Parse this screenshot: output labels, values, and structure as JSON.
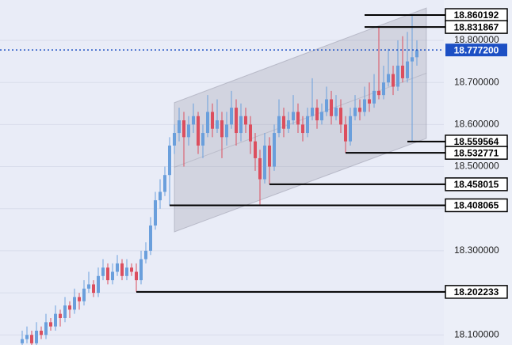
{
  "chart_data": {
    "type": "candlestick",
    "ylim": [
      18.076,
      18.896
    ],
    "yticks": [
      {
        "value": 18.1,
        "label": "18.100000"
      },
      {
        "value": 18.2,
        "label": "18.200000"
      },
      {
        "value": 18.3,
        "label": "18.300000"
      },
      {
        "value": 18.4,
        "label": "18.400000"
      },
      {
        "value": 18.5,
        "label": "18.500000"
      },
      {
        "value": 18.6,
        "label": "18.600000"
      },
      {
        "value": 18.7,
        "label": "18.700000"
      },
      {
        "value": 18.8,
        "label": "18.800000"
      }
    ],
    "grid": true,
    "up_color": "#6a9fdc",
    "down_color": "#dc4e5e",
    "candles": [
      [
        18.08,
        18.11,
        18.07,
        18.09
      ],
      [
        18.09,
        18.12,
        18.08,
        18.1
      ],
      [
        18.1,
        18.11,
        18.07,
        18.08
      ],
      [
        18.08,
        18.13,
        18.07,
        18.11
      ],
      [
        18.11,
        18.12,
        18.09,
        18.1
      ],
      [
        18.1,
        18.15,
        18.09,
        18.13
      ],
      [
        18.13,
        18.14,
        18.11,
        18.12
      ],
      [
        18.12,
        18.17,
        18.11,
        18.15
      ],
      [
        18.15,
        18.16,
        18.12,
        18.14
      ],
      [
        18.14,
        18.19,
        18.13,
        18.17
      ],
      [
        18.17,
        18.18,
        18.14,
        18.16
      ],
      [
        18.16,
        18.21,
        18.15,
        18.19
      ],
      [
        18.19,
        18.2,
        18.16,
        18.18
      ],
      [
        18.18,
        18.23,
        18.17,
        18.21
      ],
      [
        18.21,
        18.25,
        18.2,
        18.22
      ],
      [
        18.22,
        18.23,
        18.19,
        18.2
      ],
      [
        18.2,
        18.26,
        18.19,
        18.24
      ],
      [
        18.24,
        18.28,
        18.23,
        18.26
      ],
      [
        18.26,
        18.27,
        18.22,
        18.23
      ],
      [
        18.23,
        18.27,
        18.22,
        18.25
      ],
      [
        18.25,
        18.29,
        18.24,
        18.27
      ],
      [
        18.27,
        18.28,
        18.23,
        18.24
      ],
      [
        18.24,
        18.28,
        18.23,
        18.26
      ],
      [
        18.26,
        18.27,
        18.24,
        18.25
      ],
      [
        18.25,
        18.27,
        18.202233,
        18.23
      ],
      [
        18.23,
        18.3,
        18.22,
        18.28
      ],
      [
        18.28,
        18.32,
        18.27,
        18.3
      ],
      [
        18.3,
        18.38,
        18.29,
        18.36
      ],
      [
        18.36,
        18.44,
        18.35,
        18.42
      ],
      [
        18.42,
        18.47,
        18.4,
        18.44
      ],
      [
        18.44,
        18.5,
        18.43,
        18.48
      ],
      [
        18.48,
        18.57,
        18.408065,
        18.55
      ],
      [
        18.55,
        18.6,
        18.53,
        18.58
      ],
      [
        18.58,
        18.64,
        18.56,
        18.61
      ],
      [
        18.61,
        18.63,
        18.5,
        18.57
      ],
      [
        18.57,
        18.62,
        18.55,
        18.6
      ],
      [
        18.6,
        18.65,
        18.58,
        18.62
      ],
      [
        18.62,
        18.63,
        18.53,
        18.55
      ],
      [
        18.55,
        18.6,
        18.52,
        18.58
      ],
      [
        18.58,
        18.67,
        18.57,
        18.63
      ],
      [
        18.63,
        18.65,
        18.57,
        18.59
      ],
      [
        18.59,
        18.66,
        18.58,
        18.61
      ],
      [
        18.61,
        18.63,
        18.52,
        18.57
      ],
      [
        18.57,
        18.63,
        18.55,
        18.6
      ],
      [
        18.6,
        18.68,
        18.59,
        18.64
      ],
      [
        18.64,
        18.66,
        18.55,
        18.58
      ],
      [
        18.58,
        18.65,
        18.56,
        18.62
      ],
      [
        18.62,
        18.64,
        18.58,
        18.6
      ],
      [
        18.6,
        18.62,
        18.53,
        18.56
      ],
      [
        18.56,
        18.58,
        18.49,
        18.52
      ],
      [
        18.52,
        18.54,
        18.41,
        18.47
      ],
      [
        18.47,
        18.58,
        18.46,
        18.55
      ],
      [
        18.55,
        18.57,
        18.458015,
        18.5
      ],
      [
        18.5,
        18.6,
        18.49,
        18.58
      ],
      [
        18.58,
        18.66,
        18.57,
        18.62
      ],
      [
        18.62,
        18.64,
        18.57,
        18.59
      ],
      [
        18.59,
        18.63,
        18.58,
        18.61
      ],
      [
        18.61,
        18.67,
        18.6,
        18.63
      ],
      [
        18.63,
        18.65,
        18.58,
        18.6
      ],
      [
        18.6,
        18.62,
        18.56,
        18.58
      ],
      [
        18.58,
        18.64,
        18.57,
        18.62
      ],
      [
        18.62,
        18.71,
        18.61,
        18.64
      ],
      [
        18.64,
        18.66,
        18.59,
        18.61
      ],
      [
        18.61,
        18.65,
        18.6,
        18.63
      ],
      [
        18.63,
        18.69,
        18.62,
        18.66
      ],
      [
        18.66,
        18.68,
        18.6,
        18.62
      ],
      [
        18.62,
        18.67,
        18.61,
        18.64
      ],
      [
        18.64,
        18.66,
        18.58,
        18.6
      ],
      [
        18.6,
        18.62,
        18.532771,
        18.56
      ],
      [
        18.56,
        18.64,
        18.55,
        18.62
      ],
      [
        18.62,
        18.67,
        18.61,
        18.64
      ],
      [
        18.64,
        18.66,
        18.61,
        18.63
      ],
      [
        18.63,
        18.69,
        18.62,
        18.66
      ],
      [
        18.66,
        18.7,
        18.63,
        18.65
      ],
      [
        18.65,
        18.72,
        18.64,
        18.68
      ],
      [
        18.68,
        18.831867,
        18.66,
        18.67
      ],
      [
        18.67,
        18.74,
        18.66,
        18.7
      ],
      [
        18.7,
        18.78,
        18.69,
        18.72
      ],
      [
        18.72,
        18.74,
        18.67,
        18.69
      ],
      [
        18.69,
        18.8,
        18.68,
        18.74
      ],
      [
        18.74,
        18.81,
        18.7,
        18.71
      ],
      [
        18.71,
        18.82,
        18.7,
        18.75
      ],
      [
        18.75,
        18.860192,
        18.559564,
        18.76
      ],
      [
        18.76,
        18.8,
        18.74,
        18.7772
      ]
    ],
    "channel": {
      "from": 32,
      "to": 85,
      "upper": [
        18.652,
        18.877
      ],
      "lower": [
        18.345,
        18.567
      ]
    },
    "levels": [
      {
        "value": 18.860192,
        "from": 72
      },
      {
        "value": 18.831867,
        "from": 72
      },
      {
        "value": 18.559564,
        "from": 81
      },
      {
        "value": 18.532771,
        "from": 68
      },
      {
        "value": 18.458015,
        "from": 52
      },
      {
        "value": 18.408065,
        "from": 31
      },
      {
        "value": 18.202233,
        "from": 24
      }
    ],
    "last_price": {
      "value": 18.7772,
      "label": "18.777200",
      "color": "#1c4fc4"
    }
  }
}
